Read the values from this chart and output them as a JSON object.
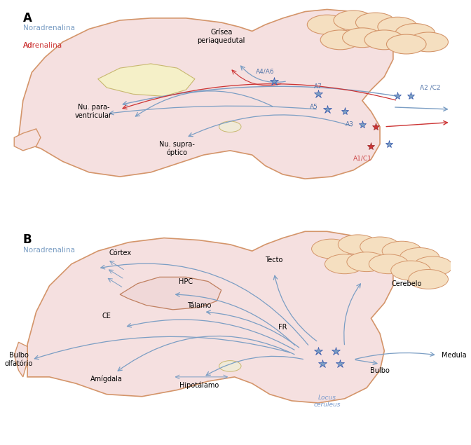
{
  "bg_color": "#ffffff",
  "panel_A": {
    "label": "A",
    "legend_noradr": "Noradrenalina",
    "legend_adr": "Adrenalina",
    "noradr_color": "#7b9ec4",
    "adr_color": "#cc3333",
    "brain_fill": "#f5e0e0",
    "brain_stroke": "#d4956a",
    "cerebellum_fill": "#f5dfc0",
    "ventricle_fill": "#f5f0c8",
    "nodes_blue": [
      "A4/A6",
      "A7",
      "A5",
      "A2/C2",
      "A3"
    ],
    "nodes_red": [
      "A1/C1"
    ],
    "labels": {
      "grisea": "Grísea\nperiaquedutal",
      "nu_para": "Nu. para-\nventricular",
      "nu_supra": "Nu. supra-\nóptico"
    }
  },
  "panel_B": {
    "label": "B",
    "legend_noradr": "Noradrenalina",
    "noradr_color": "#7b9ec4",
    "brain_fill": "#f5e0e0",
    "brain_stroke": "#d4956a",
    "cerebellum_fill": "#f5dfc0",
    "ventricle_fill": "#f5f0c8",
    "labels": {
      "cortex": "Córtex",
      "hpc": "HPC",
      "talamo": "Tálamo",
      "ce": "CE",
      "amigdala": "Amígdala",
      "hipotalamo": "Hipotálamo",
      "tecto": "Tecto",
      "fr": "FR",
      "locus": "Locus\nceruleus",
      "bulbo": "Bulbo",
      "medula": "Medula",
      "cerebelo": "Cerebelo",
      "bulbo_olf": "Bulbo\nolfatório"
    }
  }
}
